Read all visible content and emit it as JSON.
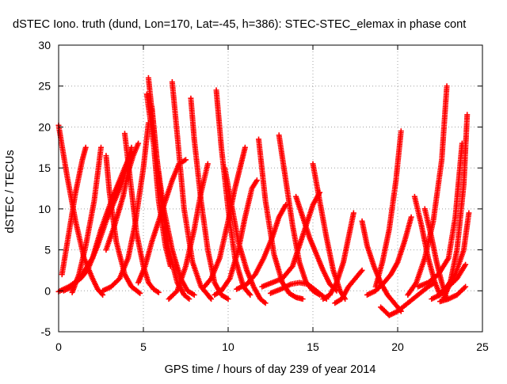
{
  "chart_data": {
    "type": "scatter",
    "title": "dSTEC Iono. truth (dund, Lon=170, Lat=-45, h=386): STEC-STEC_elemax in phase cont",
    "xlabel": "GPS time / hours of day 239 of year 2014",
    "ylabel": "dSTEC  / TECUs",
    "xlim": [
      0,
      25
    ],
    "ylim": [
      -5,
      30
    ],
    "xticks": [
      0,
      5,
      10,
      15,
      20,
      25
    ],
    "yticks": [
      -5,
      0,
      5,
      10,
      15,
      20,
      25,
      30
    ],
    "grid": true,
    "marker": "+",
    "color": "#ff0000",
    "series": [
      {
        "x": [
          0.0,
          0.5,
          1.0,
          1.5,
          2.0,
          2.3,
          2.6
        ],
        "y": [
          20.2,
          14.0,
          8.5,
          4.0,
          1.5,
          0.2,
          -0.5
        ]
      },
      {
        "x": [
          0.0,
          0.6,
          1.3,
          1.7,
          2.3,
          2.8,
          3.3,
          3.8,
          4.3
        ],
        "y": [
          -0.1,
          0.5,
          1.5,
          2.5,
          5.5,
          8.5,
          11.0,
          13.5,
          17.5
        ]
      },
      {
        "x": [
          0.2,
          0.6,
          1.0,
          1.4,
          1.6
        ],
        "y": [
          2.0,
          7.0,
          12.0,
          16.0,
          17.5
        ]
      },
      {
        "x": [
          0.8,
          1.2,
          1.6,
          2.1,
          2.5
        ],
        "y": [
          -0.2,
          2.0,
          5.5,
          11.0,
          17.5
        ]
      },
      {
        "x": [
          0.3,
          0.8,
          1.4,
          2.0,
          2.5,
          3.2,
          3.8,
          4.3
        ],
        "y": [
          0.0,
          0.5,
          2.0,
          4.0,
          7.5,
          11.5,
          14.5,
          17.0
        ]
      },
      {
        "x": [
          2.6,
          3.1,
          3.6,
          4.1,
          4.5,
          5.0,
          5.3
        ],
        "y": [
          0.0,
          0.5,
          1.5,
          4.0,
          8.0,
          15.0,
          20.5
        ]
      },
      {
        "x": [
          2.8,
          3.0,
          3.4,
          3.9,
          4.3,
          4.8
        ],
        "y": [
          16.5,
          12.0,
          6.0,
          2.0,
          0.5,
          -0.3
        ]
      },
      {
        "x": [
          3.9,
          4.2,
          4.6,
          5.0,
          5.3,
          5.6,
          5.9
        ],
        "y": [
          19.2,
          14.0,
          7.0,
          3.0,
          1.0,
          0.2,
          -0.2
        ]
      },
      {
        "x": [
          2.8,
          3.3,
          3.8,
          4.1,
          4.4,
          4.7
        ],
        "y": [
          5.0,
          8.0,
          11.5,
          14.5,
          16.5,
          18.0
        ]
      },
      {
        "x": [
          5.3,
          5.6,
          6.0,
          6.5,
          7.0,
          7.4,
          7.7
        ],
        "y": [
          26.0,
          20.0,
          12.0,
          5.0,
          1.0,
          -0.5,
          -1.0
        ]
      },
      {
        "x": [
          5.5,
          5.8,
          6.2,
          6.7,
          7.2,
          7.6,
          8.0
        ],
        "y": [
          22.5,
          16.0,
          10.0,
          5.0,
          1.5,
          0.0,
          -0.5
        ]
      },
      {
        "x": [
          5.2,
          5.6,
          5.9,
          6.3,
          6.6
        ],
        "y": [
          24.0,
          18.0,
          11.0,
          5.5,
          3.0
        ]
      },
      {
        "x": [
          4.7,
          5.1,
          5.5,
          5.9,
          6.3,
          6.7,
          7.1,
          7.5
        ],
        "y": [
          1.0,
          3.0,
          6.0,
          8.5,
          11.0,
          13.5,
          15.5,
          16.0
        ]
      },
      {
        "x": [
          6.7,
          7.0,
          7.4,
          7.9,
          8.4,
          8.8,
          9.0
        ],
        "y": [
          25.5,
          19.0,
          10.0,
          3.5,
          0.5,
          -0.5,
          -1.0
        ]
      },
      {
        "x": [
          7.8,
          8.0,
          8.4,
          8.8,
          9.2,
          9.6,
          10.0
        ],
        "y": [
          23.5,
          18.5,
          11.0,
          5.0,
          1.0,
          -0.5,
          -1.0
        ]
      },
      {
        "x": [
          6.5,
          7.0,
          7.5,
          8.0,
          8.4,
          8.8
        ],
        "y": [
          -1.0,
          0.0,
          3.0,
          7.5,
          12.0,
          15.5
        ]
      },
      {
        "x": [
          9.3,
          9.6,
          10.0,
          10.4,
          10.9,
          11.3
        ],
        "y": [
          24.5,
          17.5,
          10.0,
          4.0,
          0.5,
          -0.5
        ]
      },
      {
        "x": [
          8.6,
          9.0,
          9.5,
          10.0,
          10.4,
          10.7,
          11.0
        ],
        "y": [
          0.5,
          1.5,
          4.0,
          8.5,
          12.5,
          15.0,
          17.5
        ]
      },
      {
        "x": [
          9.2,
          9.6,
          10.1,
          10.6,
          11.0,
          11.4,
          11.7
        ],
        "y": [
          -0.5,
          0.0,
          1.5,
          5.0,
          9.0,
          12.5,
          13.5
        ]
      },
      {
        "x": [
          9.8,
          10.2,
          10.6,
          11.1,
          11.5,
          11.9,
          12.2
        ],
        "y": [
          15.0,
          10.5,
          6.0,
          2.5,
          0.5,
          -1.0,
          -1.5
        ]
      },
      {
        "x": [
          11.8,
          12.2,
          12.7,
          13.2,
          13.6,
          14.0,
          14.4
        ],
        "y": [
          18.5,
          11.0,
          4.5,
          1.0,
          -0.3,
          -0.8,
          -1.0
        ]
      },
      {
        "x": [
          13.0,
          13.4,
          13.8,
          14.2,
          14.6,
          15.0,
          15.4
        ],
        "y": [
          19.0,
          13.5,
          8.0,
          3.5,
          1.0,
          0.0,
          -0.5
        ]
      },
      {
        "x": [
          10.5,
          11.1,
          11.6,
          12.1,
          12.6,
          13.0,
          13.4
        ],
        "y": [
          0.2,
          0.8,
          2.0,
          4.0,
          6.5,
          9.0,
          10.5
        ]
      },
      {
        "x": [
          12.0,
          12.6,
          13.2,
          13.8,
          14.2,
          14.6,
          15.0,
          15.4
        ],
        "y": [
          0.5,
          1.0,
          1.5,
          3.0,
          5.5,
          8.0,
          10.5,
          12.0
        ]
      },
      {
        "x": [
          14.0,
          14.4,
          14.8,
          15.2,
          15.6,
          16.0,
          16.4
        ],
        "y": [
          11.5,
          9.0,
          6.5,
          4.5,
          2.5,
          0.8,
          0.0
        ]
      },
      {
        "x": [
          15.0,
          15.4,
          15.8,
          16.2,
          16.6,
          16.9
        ],
        "y": [
          15.5,
          11.0,
          6.5,
          2.5,
          0.0,
          -1.0
        ]
      },
      {
        "x": [
          12.5,
          13.1,
          13.7,
          14.2,
          14.7,
          15.2,
          15.8
        ],
        "y": [
          -0.3,
          0.2,
          0.8,
          1.0,
          0.8,
          0.0,
          -1.0
        ]
      },
      {
        "x": [
          15.6,
          16.0,
          16.4,
          16.8,
          17.1,
          17.4
        ],
        "y": [
          -1.0,
          -0.5,
          1.0,
          3.5,
          6.5,
          9.5
        ]
      },
      {
        "x": [
          16.3,
          16.7,
          17.1,
          17.5,
          17.9
        ],
        "y": [
          -1.5,
          -1.0,
          0.5,
          1.5,
          2.5
        ]
      },
      {
        "x": [
          17.9,
          18.2,
          18.6,
          19.0,
          19.4,
          19.8,
          20.2
        ],
        "y": [
          8.5,
          5.5,
          3.0,
          1.0,
          -0.5,
          -1.5,
          -2.5
        ]
      },
      {
        "x": [
          18.7,
          19.1,
          19.5,
          19.9,
          20.2
        ],
        "y": [
          0.5,
          3.5,
          7.5,
          13.5,
          19.5
        ]
      },
      {
        "x": [
          18.2,
          18.7,
          19.2,
          19.6,
          20.0,
          20.4,
          20.8
        ],
        "y": [
          -0.5,
          0.0,
          1.0,
          2.0,
          3.5,
          6.0,
          9.0
        ]
      },
      {
        "x": [
          19.0,
          19.5,
          20.0,
          20.6,
          21.2,
          21.8,
          22.2
        ],
        "y": [
          -2.0,
          -3.0,
          -2.5,
          -1.5,
          -0.5,
          0.5,
          1.0
        ]
      },
      {
        "x": [
          21.0,
          21.4,
          21.8,
          22.2,
          22.5
        ],
        "y": [
          11.5,
          8.0,
          4.0,
          1.0,
          -0.5
        ]
      },
      {
        "x": [
          21.6,
          22.0,
          22.3,
          22.6,
          22.9
        ],
        "y": [
          10.0,
          6.5,
          3.5,
          1.0,
          -1.0
        ]
      },
      {
        "x": [
          20.6,
          21.1,
          21.6,
          22.1,
          22.6,
          22.9
        ],
        "y": [
          -0.5,
          1.0,
          4.0,
          8.5,
          16.0,
          25.0
        ]
      },
      {
        "x": [
          21.2,
          21.8,
          22.4,
          23.0,
          23.4,
          23.8
        ],
        "y": [
          0.5,
          1.0,
          2.0,
          4.0,
          9.0,
          18.0
        ]
      },
      {
        "x": [
          22.4,
          22.9,
          23.4,
          23.9,
          24.2
        ],
        "y": [
          -0.5,
          0.5,
          2.0,
          5.0,
          9.5
        ]
      },
      {
        "x": [
          22.7,
          23.1,
          23.5,
          23.9,
          24.1
        ],
        "y": [
          -1.0,
          1.0,
          5.0,
          13.0,
          21.5
        ]
      },
      {
        "x": [
          22.0,
          22.5,
          23.0,
          23.5,
          24.0
        ],
        "y": [
          -1.0,
          -0.5,
          0.5,
          1.5,
          3.2
        ]
      },
      {
        "x": [
          22.5,
          23.0,
          23.5,
          24.0
        ],
        "y": [
          -1.3,
          -1.0,
          -0.5,
          0.5
        ]
      }
    ]
  }
}
